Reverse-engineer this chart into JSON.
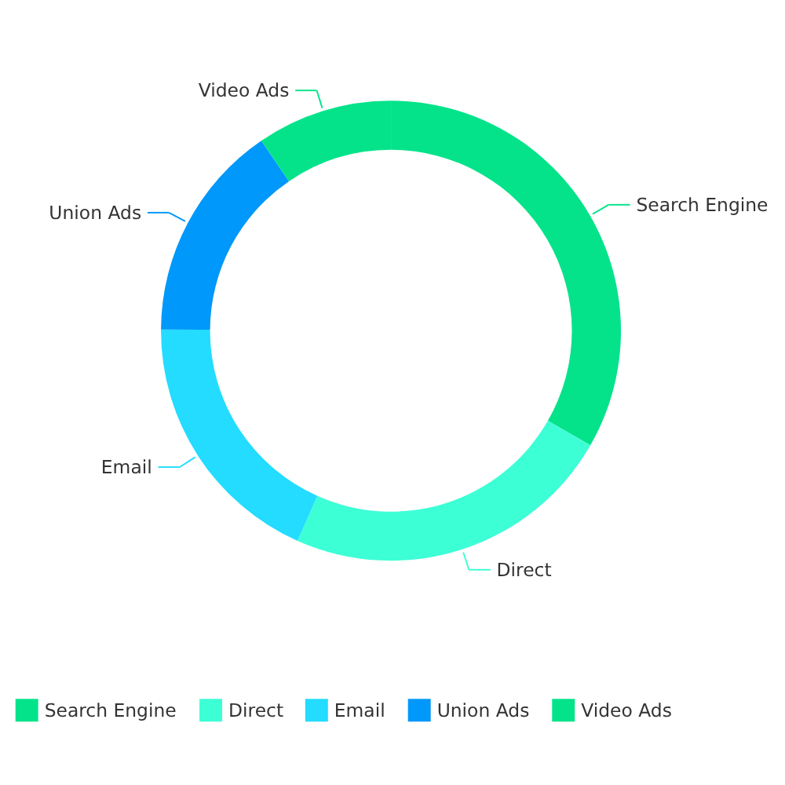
{
  "chart_data": {
    "type": "donut",
    "categories": [
      "Search Engine",
      "Direct",
      "Email",
      "Union Ads",
      "Video Ads"
    ],
    "values": [
      33.3,
      23.36,
      18.43,
      15.38,
      9.53
    ],
    "colors": [
      "#05e38a",
      "#3dffd6",
      "#23dcff",
      "#0098fa",
      "#05e38a"
    ],
    "legend": "bottom"
  }
}
